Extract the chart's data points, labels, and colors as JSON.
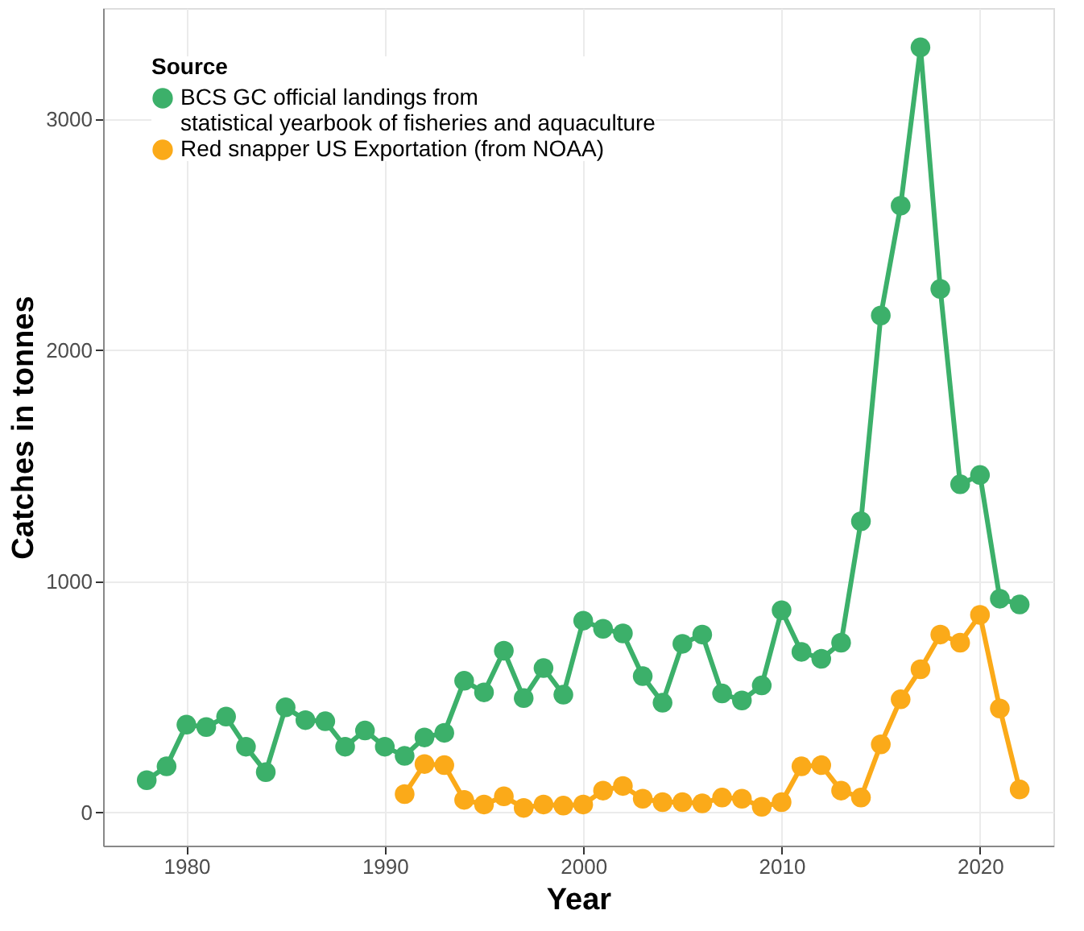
{
  "chart_data": {
    "type": "line",
    "xlabel": "Year",
    "ylabel": "Catches in tonnes",
    "legend_title": "Source",
    "legend": "top left",
    "grid": true,
    "marker": "circle",
    "line_style": "solid",
    "xlim": [
      1975.8,
      2023.7
    ],
    "xticks": [
      1980,
      1990,
      2000,
      2010,
      2020
    ],
    "ylim": [
      -143,
      3480
    ],
    "yticks": [
      0,
      1000,
      2000,
      3000
    ],
    "series": [
      {
        "name": "BCS GC official landings from\nstatistical yearbook of fisheries and aquaculture",
        "color": "#3cb06a",
        "x": [
          1978,
          1979,
          1980,
          1981,
          1982,
          1983,
          1984,
          1985,
          1986,
          1987,
          1988,
          1989,
          1990,
          1991,
          1992,
          1993,
          1994,
          1995,
          1996,
          1997,
          1998,
          1999,
          2000,
          2001,
          2002,
          2003,
          2004,
          2005,
          2006,
          2007,
          2008,
          2009,
          2010,
          2011,
          2012,
          2013,
          2014,
          2015,
          2016,
          2017,
          2018,
          2019,
          2020,
          2021,
          2022
        ],
        "values": [
          140,
          200,
          380,
          370,
          415,
          285,
          175,
          455,
          400,
          395,
          285,
          355,
          285,
          245,
          325,
          345,
          570,
          520,
          700,
          495,
          625,
          510,
          830,
          795,
          775,
          590,
          475,
          730,
          770,
          515,
          485,
          550,
          875,
          695,
          665,
          735,
          1260,
          2150,
          2625,
          3310,
          2265,
          1420,
          1460,
          925,
          900
        ]
      },
      {
        "name": "Red snapper US Exportation (from NOAA)",
        "color": "#fbaa19",
        "x": [
          1991,
          1992,
          1993,
          1994,
          1995,
          1996,
          1997,
          1998,
          1999,
          2000,
          2001,
          2002,
          2003,
          2004,
          2005,
          2006,
          2007,
          2008,
          2009,
          2010,
          2011,
          2012,
          2013,
          2014,
          2015,
          2016,
          2017,
          2018,
          2019,
          2020,
          2021,
          2022
        ],
        "values": [
          80,
          210,
          205,
          55,
          35,
          70,
          20,
          35,
          30,
          35,
          95,
          115,
          60,
          45,
          45,
          40,
          65,
          60,
          25,
          45,
          200,
          205,
          95,
          65,
          295,
          490,
          620,
          770,
          735,
          855,
          450,
          100
        ]
      }
    ]
  }
}
